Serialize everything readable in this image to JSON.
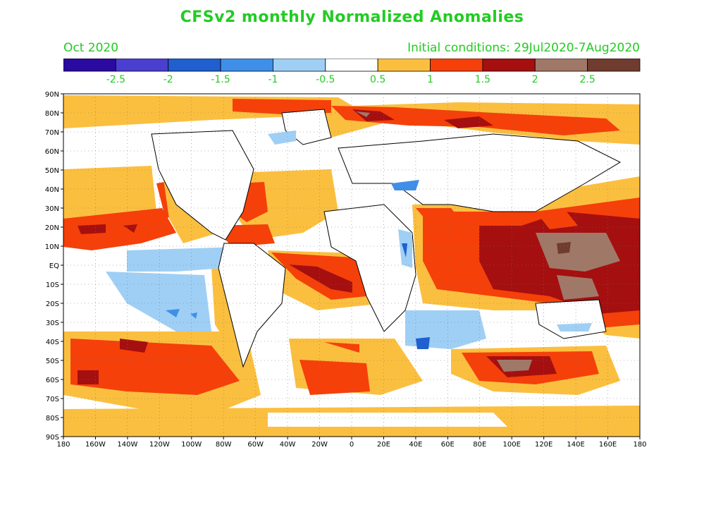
{
  "header": {
    "title": "CFSv2 monthly Normalized Anomalies",
    "month": "Oct 2020",
    "initial_conditions": "Initial conditions: 29Jul2020-7Aug2020"
  },
  "colorbar": {
    "colors": [
      "#2a0aa0",
      "#4a3fd0",
      "#1f5fd0",
      "#3f8fe8",
      "#9fcff5",
      "#ffffff",
      "#fbbf3f",
      "#f5400a",
      "#a50f0f",
      "#a07868",
      "#703c30"
    ],
    "tick_labels": [
      "-2.5",
      "-2",
      "-1.5",
      "-1",
      "-0.5",
      "0.5",
      "1",
      "1.5",
      "2",
      "2.5"
    ],
    "tick_color": "#22cc22"
  },
  "map": {
    "lat_labels": [
      "90N",
      "80N",
      "70N",
      "60N",
      "50N",
      "40N",
      "30N",
      "20N",
      "10N",
      "EQ",
      "10S",
      "20S",
      "30S",
      "40S",
      "50S",
      "60S",
      "70S",
      "80S",
      "90S"
    ],
    "lon_labels": [
      "180",
      "160W",
      "140W",
      "120W",
      "100W",
      "80W",
      "60W",
      "40W",
      "20W",
      "0",
      "20E",
      "40E",
      "60E",
      "80E",
      "100E",
      "120E",
      "140E",
      "160E",
      "180"
    ]
  }
}
